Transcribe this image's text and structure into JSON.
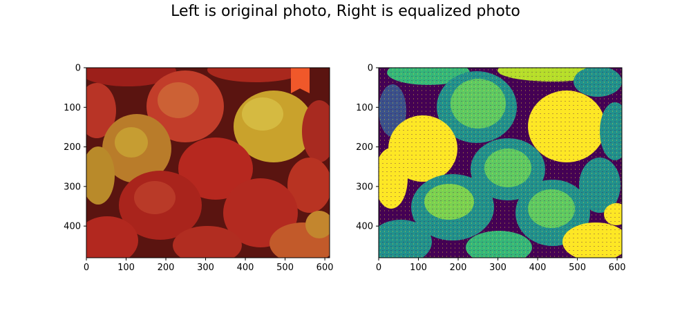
{
  "figure_title": "Left is original photo, Right is equalized photo",
  "chart_data": [
    {
      "type": "image",
      "content": "apples photo (original colors)",
      "title": "",
      "xlabel": "",
      "ylabel": "",
      "xlim": [
        0,
        612
      ],
      "ylim": [
        480,
        0
      ],
      "x_ticks": [
        0,
        100,
        200,
        300,
        400,
        500,
        600
      ],
      "y_ticks": [
        0,
        100,
        200,
        300,
        400
      ],
      "colors": {
        "apple_red": "#a8231c",
        "apple_yellow": "#c8a62a",
        "bookmark": "#f0582a"
      }
    },
    {
      "type": "image",
      "content": "histogram-equalized grayscale photo (viridis colormap)",
      "title": "",
      "xlabel": "",
      "ylabel": "",
      "xlim": [
        0,
        612
      ],
      "ylim": [
        480,
        0
      ],
      "x_ticks": [
        0,
        100,
        200,
        300,
        400,
        500,
        600
      ],
      "y_ticks": [
        0,
        100,
        200,
        300,
        400
      ],
      "colormap": "viridis",
      "colors": {
        "low": "#440154",
        "mid": "#21918c",
        "high": "#fde725"
      }
    }
  ]
}
